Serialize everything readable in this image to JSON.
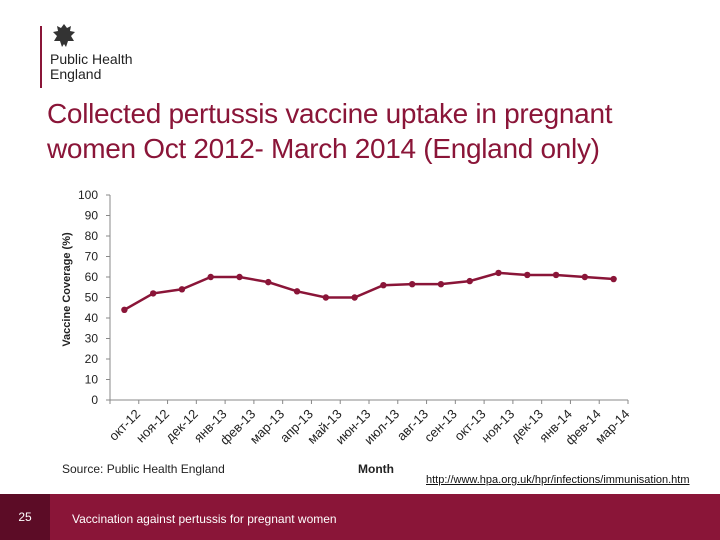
{
  "header": {
    "logo_line1": "Public Health",
    "logo_line2": "England"
  },
  "title": "Collected pertussis vaccine uptake in pregnant women Oct 2012- March 2014 (England only)",
  "source_text": "Source: Public Health England",
  "url_text": "http://www.hpa.org.uk/hpr/infections/immunisation.htm",
  "footer": {
    "page_number": "25",
    "text": "Vaccination against pertussis for pregnant women"
  },
  "colors": {
    "accent": "#8a1538",
    "footer_dark": "#5c0c26"
  },
  "chart_data": {
    "type": "line",
    "title": "",
    "xlabel": "Month",
    "ylabel": "Vaccine Coverage (%)",
    "ylim": [
      0,
      100
    ],
    "yticks": [
      0,
      10,
      20,
      30,
      40,
      50,
      60,
      70,
      80,
      90,
      100
    ],
    "grid": false,
    "categories": [
      "окт-12",
      "ноя-12",
      "дек-12",
      "янв-13",
      "фев-13",
      "мар-13",
      "апр-13",
      "май-13",
      "июн-13",
      "июл-13",
      "авг-13",
      "сен-13",
      "окт-13",
      "ноя-13",
      "дек-13",
      "янв-14",
      "фев-14",
      "мар-14"
    ],
    "series": [
      {
        "color": "#8a1538",
        "values": [
          44,
          52,
          54,
          60,
          60,
          57.5,
          53,
          50,
          50,
          56,
          56.5,
          56.5,
          58,
          62,
          61,
          61,
          60,
          59
        ]
      }
    ]
  }
}
